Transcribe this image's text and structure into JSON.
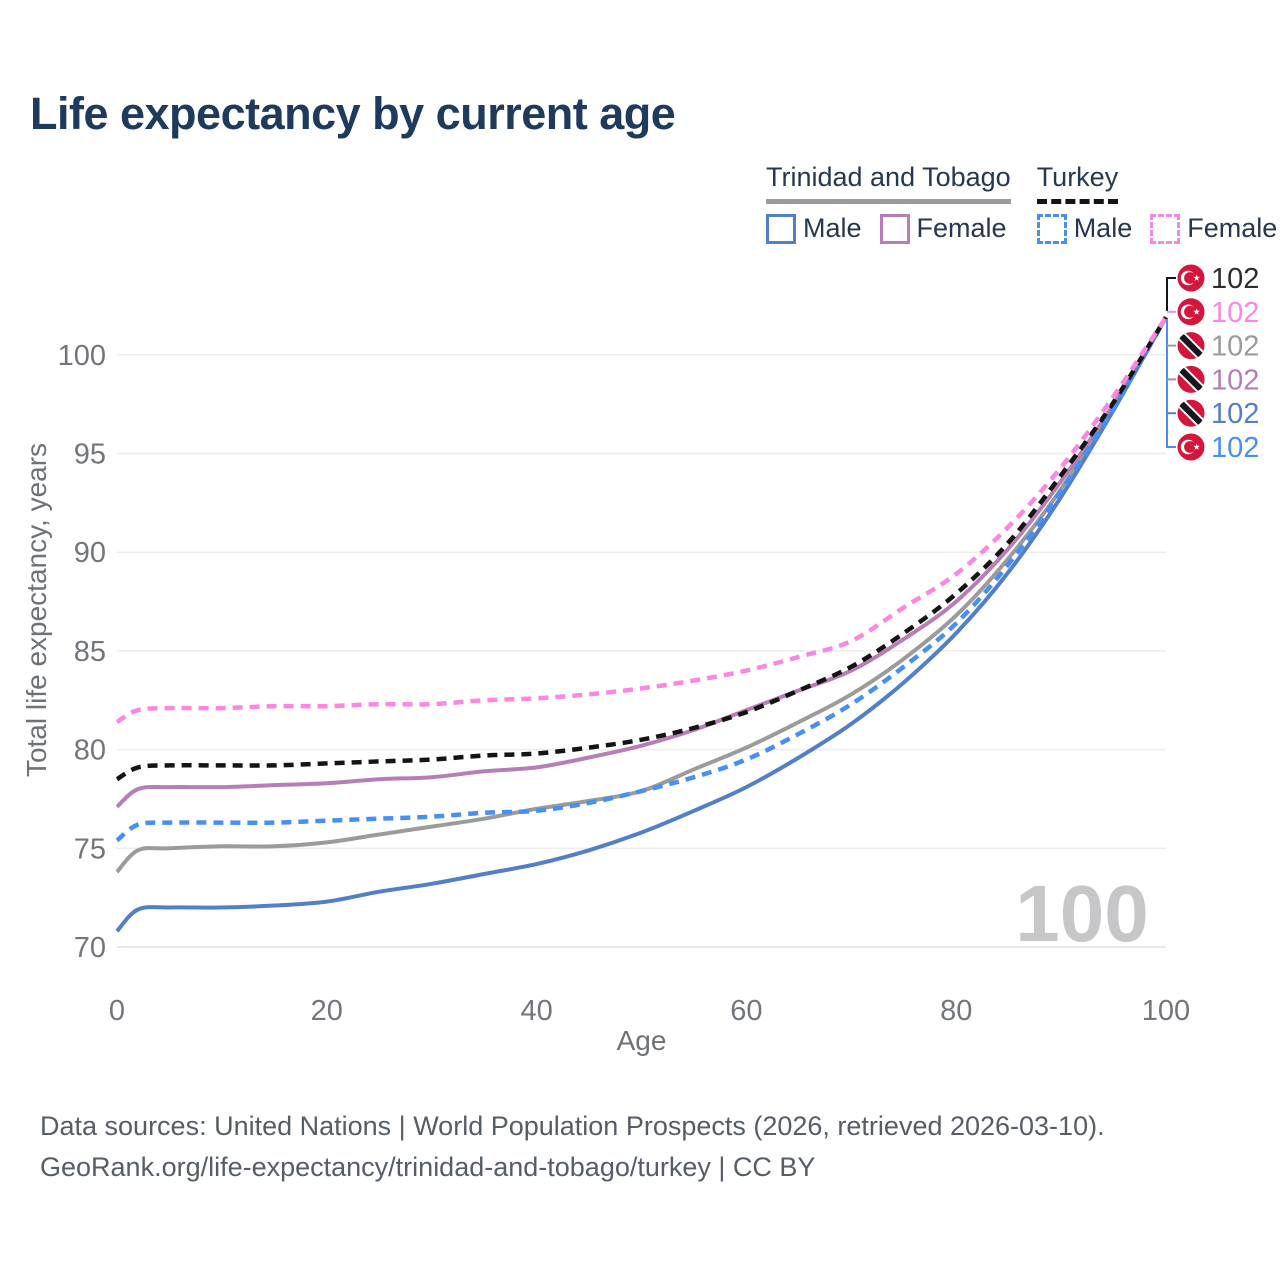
{
  "header": {
    "title": "Life expectancy by current age"
  },
  "legend": {
    "groups": [
      {
        "label": "Trinidad and Tobago",
        "style": "solid",
        "line_color": "#9b9b9b",
        "items": [
          {
            "label": "Male",
            "color": "#527fc6"
          },
          {
            "label": "Female",
            "color": "#b67eb4"
          }
        ]
      },
      {
        "label": "Turkey",
        "style": "dashed",
        "line_color": "#141414",
        "items": [
          {
            "label": "Male",
            "color": "#4590f2"
          },
          {
            "label": "Female",
            "color": "#fb87e1"
          }
        ]
      }
    ]
  },
  "chart_data": {
    "type": "line",
    "title": "Life expectancy by current age",
    "xlabel": "Age",
    "ylabel": "Total life expectancy, years",
    "xlim": [
      0,
      100
    ],
    "ylim": [
      70,
      103
    ],
    "xticks": [
      0,
      20,
      40,
      60,
      80,
      100
    ],
    "yticks": [
      70,
      75,
      80,
      85,
      90,
      95,
      100
    ],
    "grid": true,
    "legend_position": "top-right",
    "watermark": "100",
    "ages": [
      0,
      2,
      5,
      10,
      15,
      20,
      25,
      30,
      35,
      40,
      45,
      50,
      55,
      60,
      65,
      70,
      75,
      80,
      85,
      90,
      95,
      100
    ],
    "series": [
      {
        "id": "tt-all",
        "country": "Trinidad and Tobago",
        "sex": "All",
        "color": "#9b9b9b",
        "dash": false,
        "values": [
          73.8,
          74.9,
          75.0,
          75.1,
          75.1,
          75.3,
          75.7,
          76.1,
          76.5,
          77.0,
          77.4,
          77.9,
          79.0,
          80.1,
          81.4,
          82.8,
          84.6,
          86.8,
          89.7,
          93.2,
          97.4,
          101.9
        ]
      },
      {
        "id": "tt-female",
        "country": "Trinidad and Tobago",
        "sex": "Female",
        "color": "#b67eb4",
        "dash": false,
        "values": [
          77.1,
          78.0,
          78.1,
          78.1,
          78.2,
          78.3,
          78.5,
          78.6,
          78.9,
          79.1,
          79.6,
          80.2,
          81.0,
          82.0,
          83.0,
          84.0,
          85.6,
          87.5,
          90.2,
          93.6,
          97.5,
          101.9
        ]
      },
      {
        "id": "tt-male",
        "country": "Trinidad and Tobago",
        "sex": "Male",
        "color": "#527fc6",
        "dash": false,
        "values": [
          70.8,
          71.9,
          72.0,
          72.0,
          72.1,
          72.3,
          72.8,
          73.2,
          73.7,
          74.2,
          74.9,
          75.8,
          76.9,
          78.1,
          79.6,
          81.3,
          83.4,
          85.9,
          89.0,
          92.8,
          97.2,
          101.9
        ]
      },
      {
        "id": "tr-male",
        "country": "Turkey",
        "sex": "Male",
        "color": "#4590f2",
        "dash": true,
        "values": [
          75.4,
          76.2,
          76.3,
          76.3,
          76.3,
          76.4,
          76.5,
          76.6,
          76.8,
          76.9,
          77.3,
          77.9,
          78.6,
          79.5,
          80.8,
          82.3,
          84.2,
          86.4,
          89.4,
          93.1,
          97.3,
          101.9
        ]
      },
      {
        "id": "tr-all",
        "country": "Turkey",
        "sex": "All",
        "color": "#141414",
        "dash": true,
        "values": [
          78.5,
          79.1,
          79.2,
          79.2,
          79.2,
          79.3,
          79.4,
          79.5,
          79.7,
          79.8,
          80.1,
          80.5,
          81.1,
          81.9,
          83.0,
          84.2,
          85.9,
          87.9,
          90.5,
          93.9,
          97.6,
          101.9
        ]
      },
      {
        "id": "tr-female",
        "country": "Turkey",
        "sex": "Female",
        "color": "#fb87e1",
        "dash": true,
        "values": [
          81.4,
          82.0,
          82.1,
          82.1,
          82.2,
          82.2,
          82.3,
          82.3,
          82.5,
          82.6,
          82.8,
          83.1,
          83.5,
          84.0,
          84.7,
          85.5,
          87.2,
          88.9,
          91.3,
          94.3,
          97.9,
          101.9
        ]
      }
    ],
    "end_labels": [
      {
        "series": "tr-all",
        "flag": "turkey",
        "value": "102",
        "text_color": "#2b2d30"
      },
      {
        "series": "tr-female",
        "flag": "turkey",
        "value": "102",
        "text_color": "#fb87e1"
      },
      {
        "series": "tt-all",
        "flag": "trinidad-and-tobago",
        "value": "102",
        "text_color": "#9b9b9b"
      },
      {
        "series": "tt-female",
        "flag": "trinidad-and-tobago",
        "value": "102",
        "text_color": "#b67eb4"
      },
      {
        "series": "tt-male",
        "flag": "trinidad-and-tobago",
        "value": "102",
        "text_color": "#527fc6"
      },
      {
        "series": "tr-male",
        "flag": "turkey",
        "value": "102",
        "text_color": "#4590f2"
      }
    ],
    "flag_red": "#d4163c"
  },
  "footer": {
    "line1": "Data sources: United Nations | World Population Prospects (2026, retrieved 2026-03-10).",
    "line2": "GeoRank.org/life-expectancy/trinidad-and-tobago/turkey | CC BY"
  }
}
